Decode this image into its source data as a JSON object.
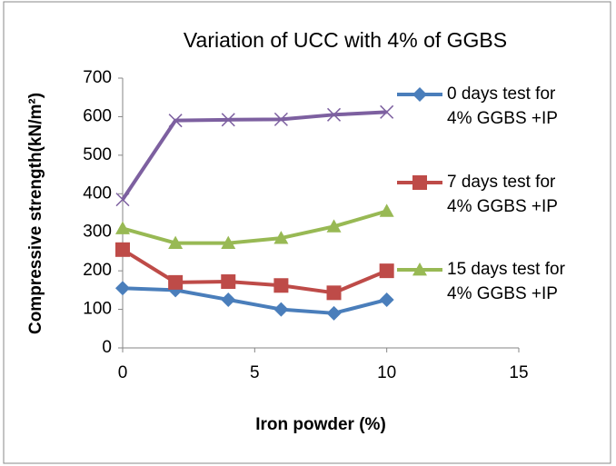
{
  "chart_data": {
    "type": "line",
    "title": "Variation of UCC with 4% of GGBS",
    "xlabel": "Iron powder (%)",
    "ylabel": "Compressive strength(kN/m²)",
    "x": [
      0,
      2,
      4,
      6,
      8,
      10
    ],
    "series": [
      {
        "name": "0 days test for 4% GGBS +IP",
        "color": "#4a7ebb",
        "marker": "diamond",
        "values": [
          155,
          150,
          125,
          100,
          90,
          125
        ]
      },
      {
        "name": "7 days test for 4% GGBS +IP",
        "color": "#be4b48",
        "marker": "square",
        "values": [
          255,
          170,
          172,
          162,
          143,
          200
        ]
      },
      {
        "name": "15 days test for 4% GGBS +IP",
        "color": "#98b954",
        "marker": "triangle",
        "values": [
          310,
          272,
          272,
          285,
          315,
          355
        ]
      },
      {
        "color": "#7d60a0",
        "marker": "x",
        "values": [
          385,
          590,
          592,
          593,
          605,
          612
        ]
      }
    ],
    "xlim": [
      0,
      15
    ],
    "xticks": [
      0,
      5,
      10,
      15
    ],
    "ylim": [
      0,
      700
    ],
    "yticks": [
      0,
      100,
      200,
      300,
      400,
      500,
      600,
      700
    ],
    "grid": false,
    "legend": "right"
  }
}
